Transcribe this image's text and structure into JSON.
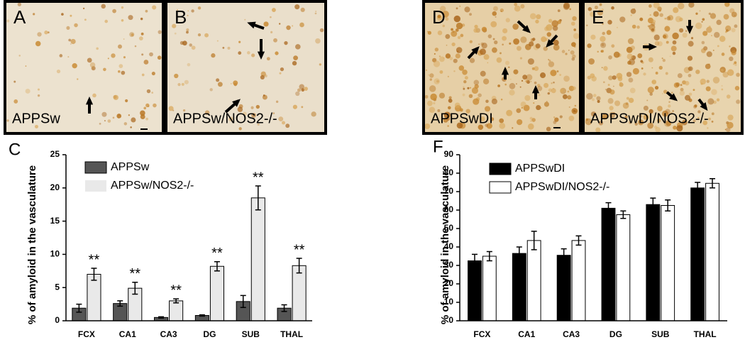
{
  "images": [
    {
      "panel": "A",
      "caption": "APPSw"
    },
    {
      "panel": "B",
      "caption": "APPSw/NOS2-/-"
    },
    {
      "panel": "D",
      "caption": "APPSwDI"
    },
    {
      "panel": "E",
      "caption": "APPSwDI/NOS2-/-"
    }
  ],
  "chart_data": [
    {
      "type": "bar",
      "panel": "C",
      "y_label": "% of amyloid in the vasculature",
      "categories": [
        "FCX",
        "CA1",
        "CA3",
        "DG",
        "SUB",
        "THAL"
      ],
      "series": [
        {
          "name": "APPSw",
          "color": "#555555",
          "values": [
            1.9,
            2.6,
            0.5,
            0.8,
            2.9,
            1.9
          ],
          "errors": [
            0.6,
            0.4,
            0.1,
            0.1,
            0.9,
            0.5
          ]
        },
        {
          "name": "APPSw/NOS2-/-",
          "color": "#e9e9e9",
          "values": [
            7.0,
            4.9,
            3.0,
            8.2,
            18.5,
            8.3
          ],
          "errors": [
            0.9,
            0.9,
            0.3,
            0.7,
            1.8,
            1.1
          ]
        }
      ],
      "significance": [
        "**",
        "**",
        "**",
        "**",
        "**",
        "**"
      ],
      "ylim": [
        0,
        25
      ],
      "yticks": [
        0,
        5,
        10,
        15,
        20,
        25
      ]
    },
    {
      "type": "bar",
      "panel": "F",
      "y_label": "% of amyloid in the vasculature",
      "categories": [
        "FCX",
        "CA1",
        "CA3",
        "DG",
        "SUB",
        "THAL"
      ],
      "series": [
        {
          "name": "APPSwDI",
          "color": "#000000",
          "values": [
            32.5,
            36.5,
            35.5,
            61,
            63,
            72
          ],
          "errors": [
            3.5,
            3.5,
            3.5,
            3,
            3.5,
            3
          ]
        },
        {
          "name": "APPSwDI/NOS2-/-",
          "color": "#ffffff",
          "values": [
            35,
            43.5,
            43.5,
            57.5,
            62.5,
            74.5
          ],
          "errors": [
            2.5,
            5,
            2.5,
            2,
            3,
            2.5
          ]
        }
      ],
      "ylim": [
        0,
        90
      ],
      "yticks": [
        0,
        10,
        20,
        30,
        40,
        50,
        60,
        70,
        80,
        90
      ]
    }
  ]
}
